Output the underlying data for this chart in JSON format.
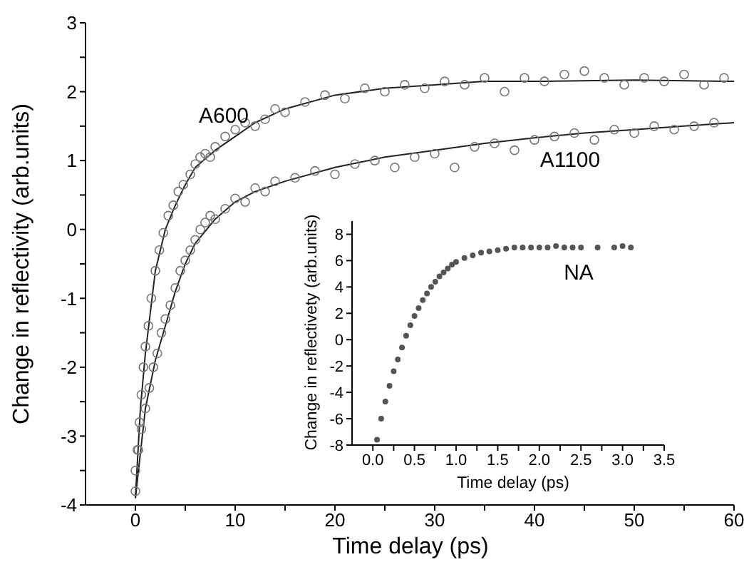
{
  "chart_data": [
    {
      "type": "scatter",
      "xlabel": "Time delay (ps)",
      "ylabel": "Change in reflectivity (arb.units)",
      "xlim": [
        -5,
        60
      ],
      "xticks": [
        0,
        {
          "value": 5,
          "label": null
        },
        10,
        {
          "value": 15,
          "label": null
        },
        20,
        {
          "value": 25,
          "label": null
        },
        30,
        {
          "value": 35,
          "label": null
        },
        40,
        {
          "value": 45,
          "label": null
        },
        50,
        {
          "value": 55,
          "label": null
        },
        60
      ],
      "ylim": [
        -4,
        3
      ],
      "yticks": [
        -4,
        {
          "value": -3.5,
          "label": null
        },
        -3,
        {
          "value": -2.5,
          "label": null
        },
        -2,
        {
          "value": -1.5,
          "label": null
        },
        -1,
        {
          "value": -0.5,
          "label": null
        },
        0,
        {
          "value": 0.5,
          "label": null
        },
        1,
        {
          "value": 1.5,
          "label": null
        },
        2,
        {
          "value": 2.5,
          "label": null
        },
        3
      ],
      "annotations": [
        "A600",
        "A1100"
      ],
      "series": [
        {
          "marker": "circle",
          "color": "#777777",
          "x": [
            0,
            0.2,
            0.4,
            0.6,
            0.8,
            1,
            1.3,
            1.6,
            2,
            2.4,
            2.8,
            3.3,
            3.8,
            4.3,
            4.8,
            5.5,
            6,
            6.5,
            7,
            7.5,
            8,
            9,
            10,
            11,
            12,
            13,
            14,
            15,
            17,
            19,
            21,
            23,
            25,
            27,
            29,
            31,
            33,
            35,
            37,
            39,
            41,
            43,
            45,
            47,
            49,
            51,
            53,
            55,
            57,
            59
          ],
          "values": [
            -3.8,
            -3.2,
            -2.8,
            -2.4,
            -2,
            -1.7,
            -1.4,
            -1,
            -0.6,
            -0.3,
            -0.05,
            0.2,
            0.35,
            0.55,
            0.65,
            0.8,
            0.95,
            1.05,
            1.1,
            1.05,
            1.2,
            1.35,
            1.45,
            1.55,
            1.5,
            1.6,
            1.75,
            1.7,
            1.85,
            1.95,
            1.9,
            2.05,
            2,
            2.1,
            2.05,
            2.15,
            2.1,
            2.2,
            2,
            2.2,
            2.15,
            2.25,
            2.3,
            2.2,
            2.1,
            2.2,
            2.15,
            2.25,
            2.1,
            2.2
          ]
        },
        {
          "type": "line",
          "marker": "none",
          "color": "#222222",
          "x": [
            0,
            0.5,
            1,
            1.5,
            2,
            3,
            4,
            5,
            6,
            8,
            10,
            12,
            15,
            20,
            25,
            30,
            35,
            40,
            50,
            60
          ],
          "values": [
            -3.9,
            -2.6,
            -1.8,
            -1.2,
            -0.6,
            0,
            0.35,
            0.65,
            0.9,
            1.15,
            1.35,
            1.55,
            1.75,
            1.95,
            2.05,
            2.1,
            2.15,
            2.15,
            2.17,
            2.15
          ]
        },
        {
          "marker": "circle",
          "color": "#777777",
          "x": [
            0,
            0.3,
            0.6,
            1,
            1.4,
            1.8,
            2.2,
            2.6,
            3,
            3.5,
            4,
            4.5,
            5,
            5.5,
            6,
            6.5,
            7,
            7.5,
            8,
            9,
            10,
            11,
            12,
            13,
            14,
            16,
            18,
            20,
            22,
            24,
            26,
            28,
            30,
            32,
            34,
            36,
            38,
            40,
            42,
            44,
            46,
            48,
            50,
            52,
            54,
            56,
            58
          ],
          "values": [
            -3.5,
            -3.2,
            -2.9,
            -2.6,
            -2.3,
            -2,
            -1.8,
            -1.5,
            -1.3,
            -1.1,
            -0.85,
            -0.6,
            -0.45,
            -0.3,
            -0.15,
            0,
            0.1,
            0.2,
            0.15,
            0.3,
            0.45,
            0.4,
            0.6,
            0.55,
            0.7,
            0.75,
            0.85,
            0.8,
            0.95,
            1,
            0.9,
            1.05,
            1.1,
            0.9,
            1.2,
            1.25,
            1.15,
            1.3,
            1.35,
            1.4,
            1.3,
            1.45,
            1.4,
            1.5,
            1.45,
            1.5,
            1.55
          ]
        },
        {
          "type": "line",
          "marker": "none",
          "color": "#222222",
          "x": [
            0,
            1,
            2,
            3,
            4,
            5,
            6,
            8,
            10,
            12,
            15,
            20,
            25,
            30,
            35,
            40,
            45,
            50,
            55,
            60
          ],
          "values": [
            -3.9,
            -2.6,
            -1.9,
            -1.4,
            -0.9,
            -0.5,
            -0.2,
            0.15,
            0.4,
            0.55,
            0.7,
            0.9,
            1.05,
            1.15,
            1.25,
            1.33,
            1.4,
            1.45,
            1.5,
            1.55
          ]
        }
      ]
    },
    {
      "type": "scatter",
      "xlabel": "Time delay (ps)",
      "ylabel": "Change in reflectivety (arb.units)",
      "xlim": [
        -0.25,
        3.5
      ],
      "xticks": [
        {
          "value": 0,
          "label": "0.0"
        },
        {
          "value": 0.25,
          "label": null
        },
        {
          "value": 0.5,
          "label": "0.5"
        },
        {
          "value": 0.75,
          "label": null
        },
        {
          "value": 1,
          "label": "1.0"
        },
        {
          "value": 1.25,
          "label": null
        },
        {
          "value": 1.5,
          "label": "1.5"
        },
        {
          "value": 1.75,
          "label": null
        },
        {
          "value": 2,
          "label": "2.0"
        },
        {
          "value": 2.25,
          "label": null
        },
        {
          "value": 2.5,
          "label": "2.5"
        },
        {
          "value": 2.75,
          "label": null
        },
        {
          "value": 3,
          "label": "3.0"
        },
        {
          "value": 3.25,
          "label": null
        },
        {
          "value": 3.5,
          "label": "3.5"
        }
      ],
      "ylim": [
        -8,
        9
      ],
      "yticks": [
        -8,
        -6,
        -4,
        -2,
        0,
        2,
        4,
        6,
        8
      ],
      "annotations": [
        "NA"
      ],
      "series": [
        {
          "marker": "circle",
          "color": "#555555",
          "x": [
            0.05,
            0.1,
            0.15,
            0.2,
            0.25,
            0.3,
            0.35,
            0.4,
            0.45,
            0.5,
            0.55,
            0.6,
            0.65,
            0.7,
            0.75,
            0.8,
            0.85,
            0.9,
            0.95,
            1,
            1.1,
            1.2,
            1.3,
            1.4,
            1.5,
            1.6,
            1.7,
            1.8,
            1.9,
            2,
            2.1,
            2.2,
            2.3,
            2.4,
            2.5,
            2.7,
            2.9,
            3,
            3.1
          ],
          "values": [
            -7.6,
            -6,
            -4.7,
            -3.5,
            -2.4,
            -1.5,
            -0.6,
            0.3,
            1.1,
            1.8,
            2.4,
            3,
            3.5,
            4,
            4.4,
            4.8,
            5.1,
            5.4,
            5.7,
            5.9,
            6.2,
            6.4,
            6.6,
            6.7,
            6.8,
            6.9,
            7,
            7,
            7,
            7,
            7,
            7.1,
            7,
            7,
            7,
            7,
            7,
            7.1,
            7
          ]
        }
      ]
    }
  ]
}
